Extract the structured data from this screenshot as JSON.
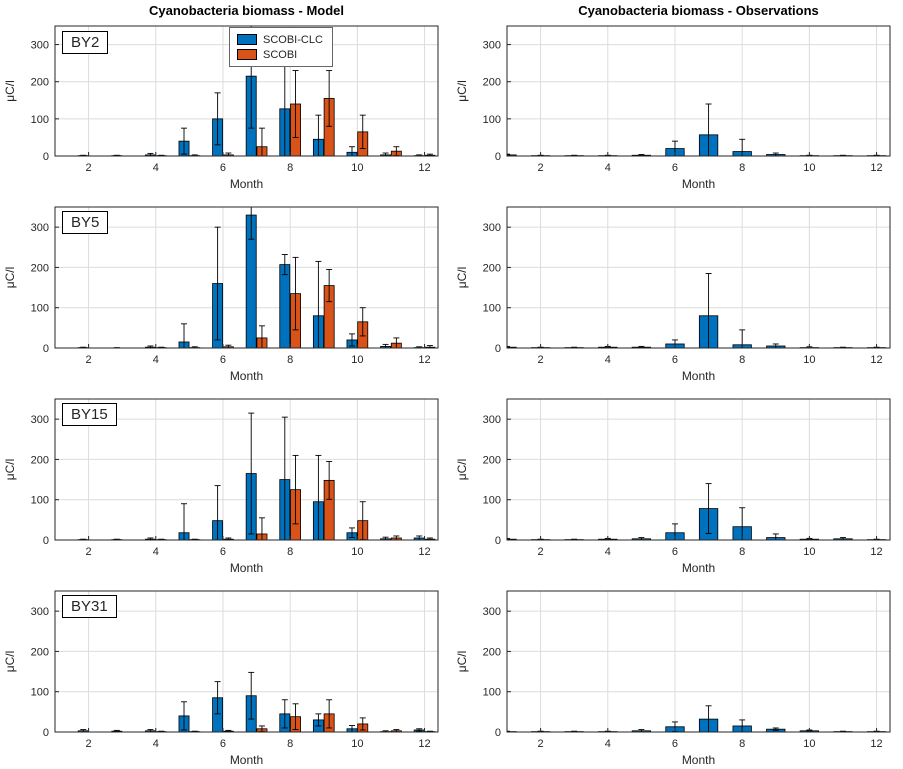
{
  "figure": {
    "titles": {
      "model": "Cyanobacteria biomass - Model",
      "observations": "Cyanobacteria biomass - Observations"
    },
    "xlabel": "Month",
    "ylabel": "μC/l",
    "x_ticks": [
      2,
      4,
      6,
      8,
      10,
      12
    ],
    "y_ticks": [
      0,
      100,
      200,
      300
    ],
    "xlim": [
      1,
      12.4
    ],
    "ylim": [
      0,
      350
    ],
    "grid": true,
    "colors": {
      "scobi_clc": "#0072BD",
      "scobi": "#D95319",
      "grid": "#dcdcdc",
      "axis": "#262626",
      "error_bar": "#000000",
      "background": "#ffffff"
    },
    "legend": [
      {
        "label": "SCOBI-CLC",
        "color": "#0072BD"
      },
      {
        "label": "SCOBI",
        "color": "#D95319"
      }
    ],
    "legend_position": "top-center of first model panel"
  },
  "stations": [
    "BY2",
    "BY5",
    "BY15",
    "BY31"
  ],
  "chart_data": [
    {
      "type": "bar",
      "panel": "model",
      "station": "BY2",
      "x": [
        1,
        2,
        3,
        4,
        5,
        6,
        7,
        8,
        9,
        10,
        11,
        12
      ],
      "series": [
        {
          "name": "SCOBI-CLC",
          "color": "#0072BD",
          "values": [
            2,
            1,
            1,
            3,
            40,
            100,
            215,
            127,
            45,
            10,
            3,
            1
          ],
          "err": [
            2,
            1,
            1,
            4,
            35,
            70,
            140,
            160,
            65,
            15,
            5,
            2
          ]
        },
        {
          "name": "SCOBI",
          "color": "#D95319",
          "values": [
            0,
            0,
            0,
            1,
            1,
            3,
            25,
            140,
            155,
            65,
            13,
            2
          ],
          "err": [
            0,
            0,
            0,
            1,
            2,
            5,
            50,
            90,
            75,
            45,
            12,
            3
          ]
        }
      ]
    },
    {
      "type": "bar",
      "panel": "observations",
      "station": "BY2",
      "x": [
        1,
        2,
        3,
        4,
        5,
        6,
        7,
        8,
        9,
        10,
        11,
        12
      ],
      "series": [
        {
          "name": "Observations",
          "color": "#0072BD",
          "values": [
            3,
            1,
            1,
            1,
            2,
            20,
            57,
            12,
            4,
            1,
            1,
            1
          ],
          "err": [
            2,
            1,
            1,
            1,
            2,
            20,
            83,
            33,
            4,
            1,
            1,
            1
          ]
        }
      ]
    },
    {
      "type": "bar",
      "panel": "model",
      "station": "BY5",
      "x": [
        1,
        2,
        3,
        4,
        5,
        6,
        7,
        8,
        9,
        10,
        11,
        12
      ],
      "series": [
        {
          "name": "SCOBI-CLC",
          "color": "#0072BD",
          "values": [
            1,
            1,
            0,
            2,
            15,
            160,
            330,
            207,
            80,
            20,
            4,
            1
          ],
          "err": [
            2,
            1,
            1,
            3,
            45,
            140,
            60,
            25,
            135,
            15,
            5,
            2
          ]
        },
        {
          "name": "SCOBI",
          "color": "#D95319",
          "values": [
            0,
            0,
            0,
            1,
            1,
            3,
            25,
            135,
            155,
            65,
            12,
            2
          ],
          "err": [
            0,
            0,
            0,
            1,
            2,
            4,
            30,
            90,
            40,
            35,
            13,
            4
          ]
        }
      ]
    },
    {
      "type": "bar",
      "panel": "observations",
      "station": "BY5",
      "x": [
        1,
        2,
        3,
        4,
        5,
        6,
        7,
        8,
        9,
        10,
        11,
        12
      ],
      "series": [
        {
          "name": "Observations",
          "color": "#0072BD",
          "values": [
            2,
            1,
            1,
            2,
            2,
            10,
            80,
            8,
            5,
            1,
            1,
            1
          ],
          "err": [
            2,
            1,
            1,
            2,
            2,
            10,
            105,
            37,
            5,
            2,
            1,
            1
          ]
        }
      ]
    },
    {
      "type": "bar",
      "panel": "model",
      "station": "BY15",
      "x": [
        1,
        2,
        3,
        4,
        5,
        6,
        7,
        8,
        9,
        10,
        11,
        12
      ],
      "series": [
        {
          "name": "SCOBI-CLC",
          "color": "#0072BD",
          "values": [
            3,
            1,
            1,
            2,
            18,
            48,
            165,
            150,
            95,
            18,
            3,
            5
          ],
          "err": [
            3,
            1,
            1,
            3,
            72,
            87,
            150,
            155,
            115,
            12,
            4,
            5
          ]
        },
        {
          "name": "SCOBI",
          "color": "#D95319",
          "values": [
            0,
            0,
            0,
            1,
            1,
            2,
            15,
            125,
            148,
            48,
            5,
            2
          ],
          "err": [
            0,
            0,
            0,
            1,
            1,
            3,
            40,
            85,
            47,
            47,
            5,
            3
          ]
        }
      ]
    },
    {
      "type": "bar",
      "panel": "observations",
      "station": "BY15",
      "x": [
        1,
        2,
        3,
        4,
        5,
        6,
        7,
        8,
        9,
        10,
        11,
        12
      ],
      "series": [
        {
          "name": "Observations",
          "color": "#0072BD",
          "values": [
            2,
            1,
            1,
            2,
            3,
            18,
            78,
            33,
            6,
            2,
            3,
            1
          ],
          "err": [
            2,
            1,
            1,
            2,
            3,
            22,
            62,
            47,
            9,
            2,
            3,
            1
          ]
        }
      ]
    },
    {
      "type": "bar",
      "panel": "model",
      "station": "BY31",
      "x": [
        1,
        2,
        3,
        4,
        5,
        6,
        7,
        8,
        9,
        10,
        11,
        12
      ],
      "series": [
        {
          "name": "SCOBI-CLC",
          "color": "#0072BD",
          "values": [
            3,
            3,
            2,
            3,
            40,
            85,
            90,
            45,
            30,
            8,
            1,
            5
          ],
          "err": [
            3,
            3,
            2,
            3,
            35,
            40,
            58,
            35,
            15,
            8,
            2,
            3
          ]
        },
        {
          "name": "SCOBI",
          "color": "#D95319",
          "values": [
            0,
            0,
            0,
            1,
            1,
            2,
            8,
            38,
            45,
            20,
            3,
            1
          ],
          "err": [
            0,
            0,
            0,
            1,
            1,
            2,
            7,
            32,
            35,
            15,
            3,
            1
          ]
        }
      ]
    },
    {
      "type": "bar",
      "panel": "observations",
      "station": "BY31",
      "x": [
        1,
        2,
        3,
        4,
        5,
        6,
        7,
        8,
        9,
        10,
        11,
        12
      ],
      "series": [
        {
          "name": "Observations",
          "color": "#0072BD",
          "values": [
            1,
            1,
            1,
            1,
            3,
            13,
            32,
            15,
            7,
            3,
            1,
            1
          ],
          "err": [
            1,
            1,
            1,
            1,
            3,
            12,
            33,
            15,
            3,
            2,
            1,
            1
          ]
        }
      ]
    }
  ]
}
